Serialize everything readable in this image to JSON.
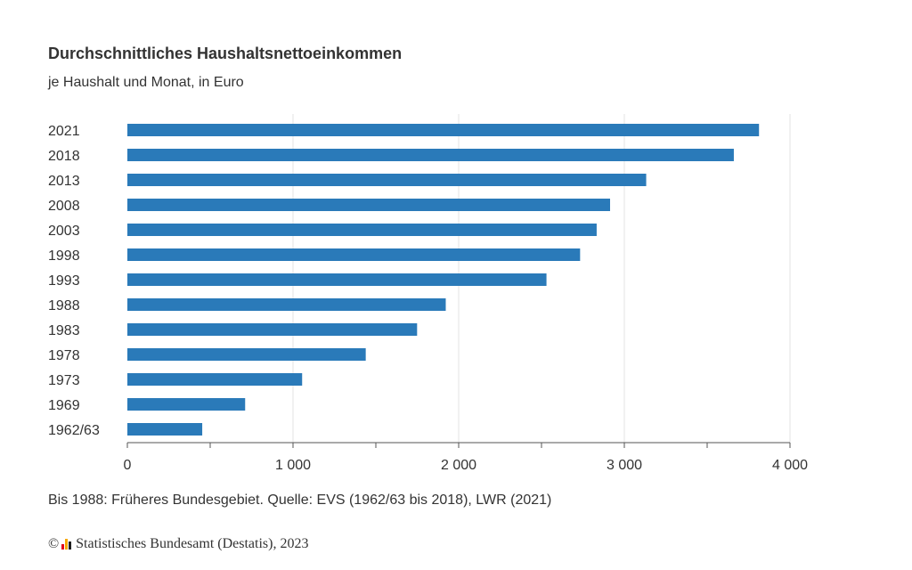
{
  "header": {
    "title": "Durchschnittliches Haushaltsnettoeinkommen",
    "subtitle": "je Haushalt und Monat, in Euro"
  },
  "footer": {
    "note": "Bis 1988: Früheres Bundesgebiet. Quelle: EVS (1962/63 bis 2018), LWR (2021)",
    "copyright_symbol": "©",
    "credit": "Statistisches Bundesamt (Destatis), 2023",
    "logo_colors": [
      "#e2001a",
      "#f7a800",
      "#1f1f1f"
    ]
  },
  "chart_data": {
    "type": "bar",
    "orientation": "horizontal",
    "categories": [
      "2021",
      "2018",
      "2013",
      "2008",
      "2003",
      "1998",
      "1993",
      "1988",
      "1983",
      "1978",
      "1973",
      "1969",
      "1962/63"
    ],
    "values": [
      3813,
      3661,
      3132,
      2914,
      2833,
      2733,
      2530,
      1922,
      1749,
      1439,
      1055,
      711,
      452
    ],
    "xlim": [
      0,
      4000
    ],
    "xticks": [
      0,
      1000,
      2000,
      3000,
      4000
    ],
    "xtick_labels": [
      "0",
      "1 000",
      "2 000",
      "3 000",
      "4 000"
    ],
    "bar_color": "#2a7ab9",
    "grid": true,
    "legend": "none"
  }
}
